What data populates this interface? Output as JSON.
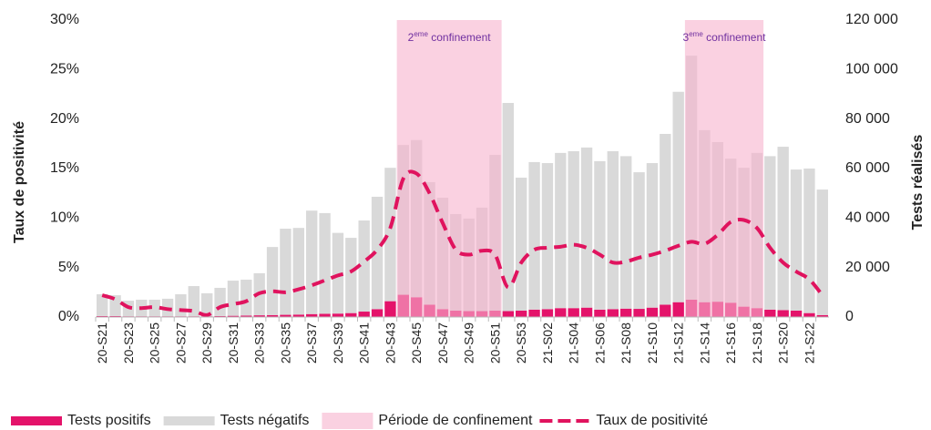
{
  "chart_data": {
    "type": "bar",
    "y_label": "Taux de positivité",
    "y2_label": "Tests réalisés",
    "categories": [
      "20-S21",
      null,
      "20-S23",
      null,
      "20-S25",
      null,
      "20-S27",
      null,
      "20-S29",
      null,
      "20-S31",
      null,
      "20-S33",
      null,
      "20-S35",
      null,
      "20-S37",
      null,
      "20-S39",
      null,
      "20-S41",
      null,
      "20-S43",
      null,
      "20-S45",
      null,
      "20-S47",
      null,
      "20-S49",
      null,
      "20-S51",
      null,
      "20-S53",
      null,
      "21-S02",
      null,
      "21-S04",
      null,
      "21-S06",
      null,
      "21-S08",
      null,
      "21-S10",
      null,
      "21-S12",
      null,
      "21-S14",
      null,
      "21-S16",
      null,
      "21-S18",
      null,
      "21-S20",
      null,
      "21-S22",
      null
    ],
    "series": [
      {
        "name": "Tests positifs",
        "color": "#e4136a",
        "axis": "y2",
        "stacked": true,
        "values": [
          400,
          400,
          300,
          300,
          300,
          300,
          300,
          300,
          300,
          400,
          500,
          600,
          700,
          800,
          900,
          1000,
          1200,
          1300,
          1400,
          1600,
          2200,
          3200,
          6400,
          9000,
          8000,
          5000,
          3200,
          2600,
          2400,
          2400,
          2600,
          2400,
          2600,
          3000,
          3200,
          3600,
          3600,
          3800,
          3000,
          3200,
          3400,
          3300,
          3800,
          5000,
          6000,
          7000,
          6000,
          6200,
          5800,
          4200,
          3600,
          3000,
          2800,
          2600,
          1600,
          800
        ]
      },
      {
        "name": "Tests négatifs",
        "color": "#d9d9d9",
        "axis": "y2",
        "stacked": true,
        "values": [
          8800,
          8400,
          6300,
          6700,
          6700,
          7100,
          8900,
          12200,
          9300,
          11400,
          14200,
          14500,
          17000,
          27500,
          34800,
          35000,
          41800,
          40700,
          32600,
          30400,
          36800,
          45400,
          53900,
          60500,
          63500,
          49500,
          45000,
          39000,
          37400,
          41800,
          62900,
          84100,
          53700,
          59600,
          59000,
          62700,
          63400,
          64700,
          60000,
          63800,
          61600,
          55200,
          58400,
          69000,
          85000,
          98600,
          69500,
          64500,
          58200,
          56100,
          62700,
          62000,
          66000,
          57000,
          58400,
          50700
        ]
      },
      {
        "name": "Taux de positivité",
        "color": "#e0135e",
        "axis": "y",
        "line": "dashed",
        "values": [
          2.2,
          1.8,
          1.0,
          0.9,
          1.0,
          0.8,
          0.7,
          0.6,
          0.2,
          1.0,
          1.3,
          1.6,
          2.4,
          2.6,
          2.5,
          2.8,
          3.2,
          3.7,
          4.2,
          4.6,
          5.6,
          6.8,
          9.0,
          14.0,
          14.5,
          12.5,
          9.5,
          6.8,
          6.3,
          6.7,
          6.3,
          3.0,
          5.5,
          6.8,
          7.0,
          7.1,
          7.3,
          7.0,
          6.3,
          5.5,
          5.6,
          6.0,
          6.3,
          6.7,
          7.2,
          7.6,
          7.4,
          8.3,
          9.6,
          9.8,
          9.0,
          7.0,
          5.5,
          4.6,
          3.8,
          2.2
        ]
      }
    ],
    "confinement": {
      "name": "Période de confinement",
      "color": "#f7b3cd",
      "periods": [
        {
          "start_index": 23,
          "end_index": 30,
          "label": [
            "2",
            "eme",
            " confinement"
          ]
        },
        {
          "start_index": 45,
          "end_index": 50,
          "label": [
            "3",
            "eme",
            " confinement"
          ]
        }
      ]
    },
    "annotation_color": "#7030a0",
    "ylim": [
      0,
      30
    ],
    "yticks": [
      {
        "value": 0,
        "label": "0%"
      },
      {
        "value": 5,
        "label": "5%"
      },
      {
        "value": 10,
        "label": "10%"
      },
      {
        "value": 15,
        "label": "15%"
      },
      {
        "value": 20,
        "label": "20%"
      },
      {
        "value": 25,
        "label": "25%"
      },
      {
        "value": 30,
        "label": "30%"
      }
    ],
    "y2lim": [
      0,
      120000
    ],
    "y2ticks": [
      0,
      {
        "value": 20000,
        "label": "20 000"
      },
      {
        "value": 40000,
        "label": "40 000"
      },
      {
        "value": 60000,
        "label": "60 000"
      },
      {
        "value": 80000,
        "label": "80 000"
      },
      {
        "value": 100000,
        "label": "100 000"
      },
      {
        "value": 120000,
        "label": "120 000"
      }
    ],
    "grid": false,
    "legend": "bottom"
  }
}
